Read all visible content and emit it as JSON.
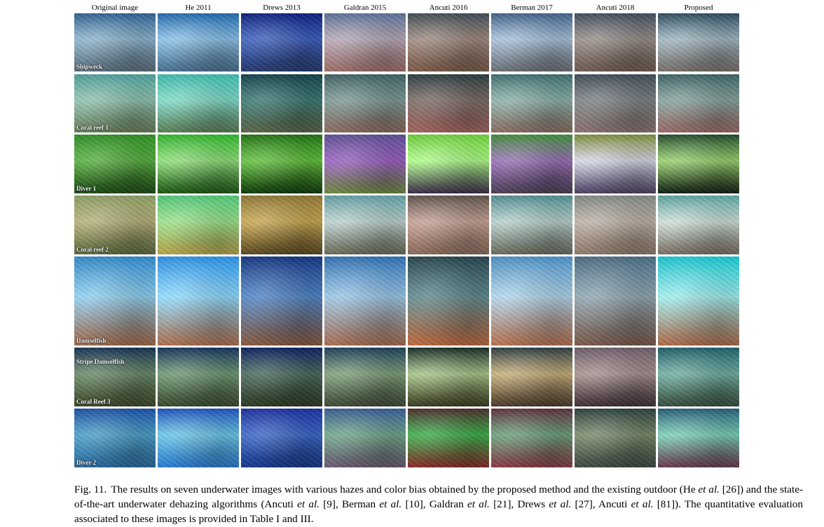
{
  "columns": [
    "Original image",
    "He 2011",
    "Drews 2013",
    "Galdran 2015",
    "Ancuti 2016",
    "Berman 2017",
    "Ancuti 2018",
    "Proposed"
  ],
  "rows": [
    {
      "label": "Shipweck",
      "label_pos": "bottom",
      "colors": [
        [
          "#2d5f8e",
          "#8fb6cf",
          "#5b6f7e"
        ],
        [
          "#1f66a8",
          "#8cc3ea",
          "#4a7090"
        ],
        [
          "#0c1f7a",
          "#3d5fbf",
          "#263a6e"
        ],
        [
          "#586f94",
          "#b9a9b6",
          "#9e6f68"
        ],
        [
          "#3d4a53",
          "#a08b80",
          "#7a5b49"
        ],
        [
          "#3f5f86",
          "#a9c3dc",
          "#6b6f75"
        ],
        [
          "#3b4c5b",
          "#9a8f8a",
          "#6e5a50"
        ],
        [
          "#2b4a5c",
          "#a2b8c2",
          "#78716a"
        ]
      ]
    },
    {
      "label": "Coral reef 1",
      "label_pos": "bottom",
      "colors": [
        [
          "#4c9b96",
          "#8fc3b0",
          "#6a7f5a"
        ],
        [
          "#3cb6a8",
          "#7fdcc8",
          "#5c7e56"
        ],
        [
          "#123f48",
          "#3b7a74",
          "#5a6648"
        ],
        [
          "#3c5e60",
          "#7e9a95",
          "#8c6c60"
        ],
        [
          "#2a3b3e",
          "#7b6b66",
          "#a4645e"
        ],
        [
          "#3b6a6c",
          "#8db3aa",
          "#8b6f64"
        ],
        [
          "#3d4a55",
          "#7f8285",
          "#8a7371"
        ],
        [
          "#3a6064",
          "#87a39d",
          "#9b6b67"
        ]
      ]
    },
    {
      "label": "Diver 1",
      "label_pos": "bottom",
      "colors": [
        [
          "#2f8b25",
          "#58b040",
          "#1c4a15"
        ],
        [
          "#2fb02a",
          "#8fe07a",
          "#1a5512"
        ],
        [
          "#1f6e12",
          "#63c23c",
          "#0f3a0a"
        ],
        [
          "#5a4e8e",
          "#9a5fc2",
          "#6d8a3e"
        ],
        [
          "#6cc83a",
          "#b0ff8a",
          "#3a2a4a"
        ],
        [
          "#3f8a3a",
          "#9a6fb8",
          "#4a3f55"
        ],
        [
          "#7a8a3a",
          "#d8d8e8",
          "#4a3f62"
        ],
        [
          "#22472a",
          "#9ad36f",
          "#0f1c12"
        ]
      ]
    },
    {
      "label": "Coral reef 2",
      "label_pos": "bottom",
      "colors": [
        [
          "#8a9a62",
          "#b7b17a",
          "#5e6b3e"
        ],
        [
          "#50c277",
          "#9be38a",
          "#b6a24a"
        ],
        [
          "#8a7335",
          "#c9a850",
          "#5a4a22"
        ],
        [
          "#5f9aa0",
          "#bdd3cf",
          "#6b6a58"
        ],
        [
          "#5a5048",
          "#c7a396",
          "#8b6b5a"
        ],
        [
          "#4f8a8e",
          "#b8d2ce",
          "#6a6a5c"
        ],
        [
          "#7d8580",
          "#c0b2a8",
          "#8e7a6a"
        ],
        [
          "#5aa09a",
          "#cfe0da",
          "#7a6e62"
        ]
      ]
    },
    {
      "label": "Damselfish",
      "label_pos": "bottom",
      "colors": [
        [
          "#2f86c6",
          "#8fd0f0",
          "#a56a4a"
        ],
        [
          "#2a8ee0",
          "#8edcff",
          "#b0704e"
        ],
        [
          "#13347e",
          "#4f86c8",
          "#8a5a3e"
        ],
        [
          "#2f6fb0",
          "#9ac8e8",
          "#a96e52"
        ],
        [
          "#26424c",
          "#5f8a8e",
          "#c06a3e"
        ],
        [
          "#4a8ec2",
          "#b0d6ec",
          "#b7714f"
        ],
        [
          "#4a6a80",
          "#8fa8b4",
          "#7c5a4a"
        ],
        [
          "#19c2cc",
          "#9ff0f0",
          "#b06a4a"
        ]
      ]
    },
    {
      "label": "Stripe Damselfish",
      "label_pos": "top",
      "label2": "Coral Reef 3",
      "colors": [
        [
          "#15304f",
          "#6a8a68",
          "#3f4a2a"
        ],
        [
          "#15305a",
          "#6f9a72",
          "#3a4a30"
        ],
        [
          "#0c1f5e",
          "#4a6a5c",
          "#2e3a24"
        ],
        [
          "#1c3c56",
          "#7fa07a",
          "#3f4a36"
        ],
        [
          "#152a24",
          "#a8c78a",
          "#3a3a1e"
        ],
        [
          "#2a3a40",
          "#c8b07a",
          "#4a3a2a"
        ],
        [
          "#6a5a66",
          "#a89290",
          "#3e2f36"
        ],
        [
          "#1f5b66",
          "#6fb0a2",
          "#3a4e3e"
        ]
      ]
    },
    {
      "label": "Diver 2",
      "label_pos": "bottom",
      "colors": [
        [
          "#1c4ea0",
          "#4aa0c8",
          "#2a6aa0"
        ],
        [
          "#1e4fb8",
          "#6ac8e8",
          "#2a7ad0"
        ],
        [
          "#1a2f9a",
          "#3a66c8",
          "#16388a"
        ],
        [
          "#355a90",
          "#6fa68a",
          "#6a5a72"
        ],
        [
          "#4a2a2a",
          "#3ab04a",
          "#8a2a2a"
        ],
        [
          "#5a2e3c",
          "#6aa07a",
          "#8a3a46"
        ],
        [
          "#2a3e3c",
          "#7a8a6a",
          "#3e4a44"
        ],
        [
          "#255a74",
          "#7ad0b8",
          "#6a3a4e"
        ]
      ]
    }
  ],
  "caption": {
    "fig_num": "Fig. 11.",
    "text_a": "The results on seven underwater images with various hazes and color bias obtained by the proposed method and the existing outdoor (He ",
    "etal_1": "et al.",
    "text_b": " [26]) and the state-of-the-art underwater dehazing algorithms (Ancuti ",
    "etal_2": "et al.",
    "text_c": " [9], Berman ",
    "etal_3": "et al.",
    "text_d": " [10], Galdran ",
    "etal_4": "et al.",
    "text_e": " [21], Drews ",
    "etal_5": "et al.",
    "text_f": " [27], Ancuti ",
    "etal_6": "et al.",
    "text_g": " [81]). The quantitative evaluation associated to these images is provided in Table I and III."
  }
}
